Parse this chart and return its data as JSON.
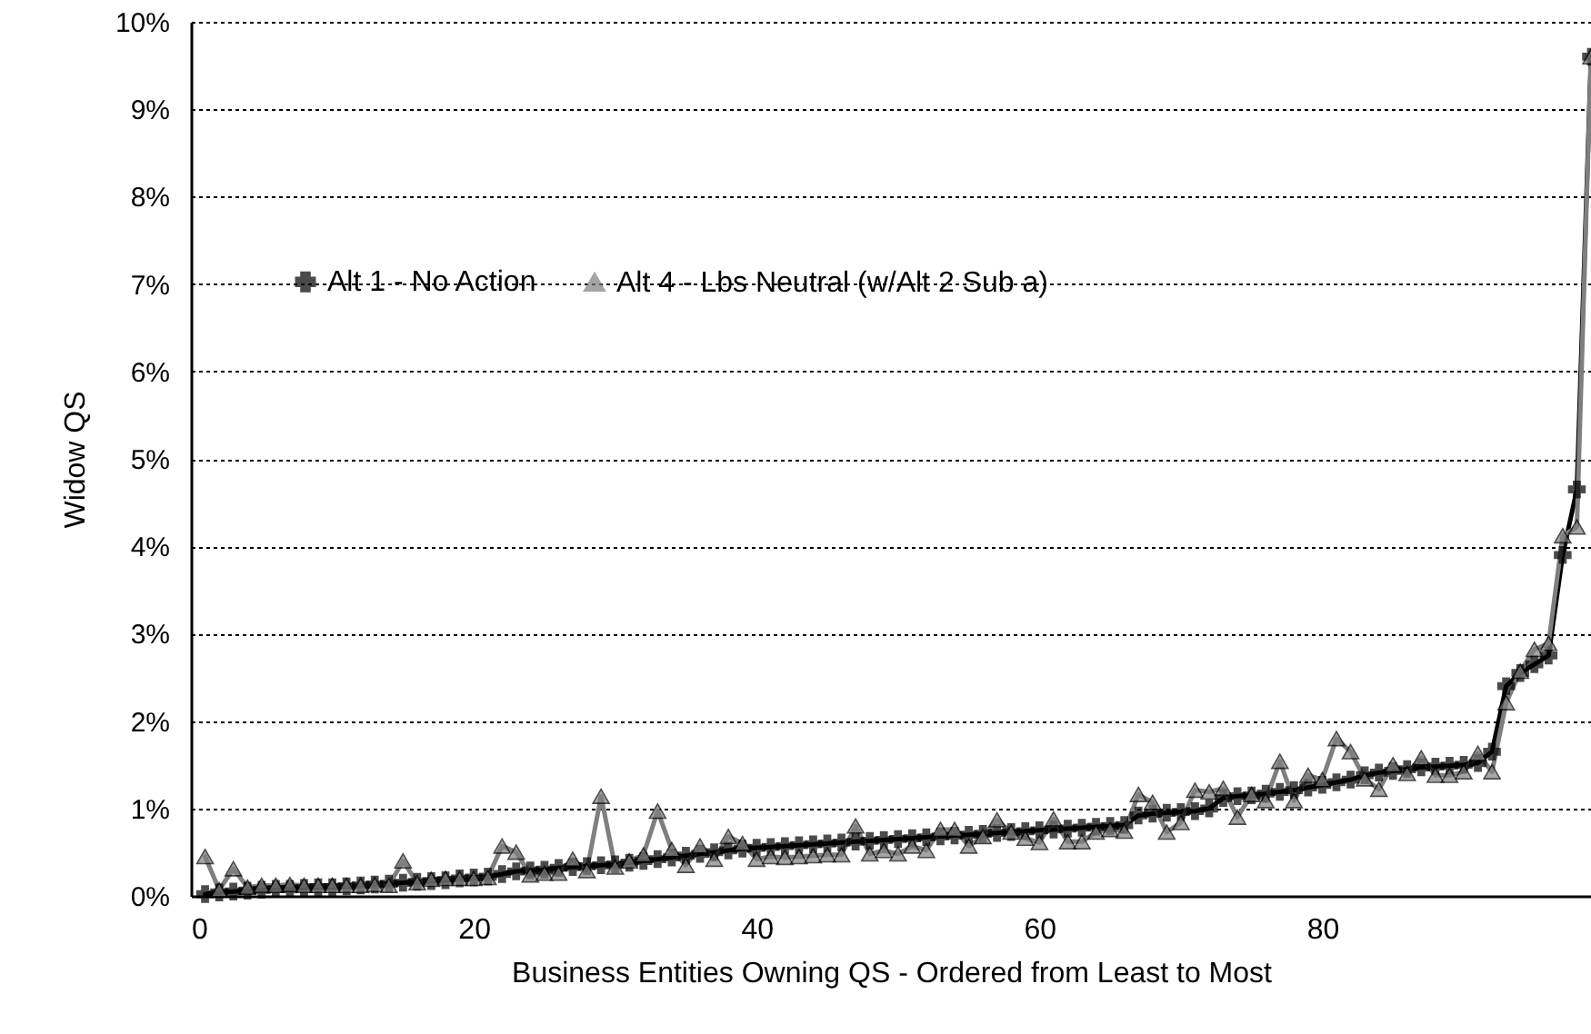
{
  "chart_data": {
    "type": "line",
    "xlabel": "Business Entities Owning QS - Ordered from Least to Most",
    "ylabel": "Widow QS",
    "x": [
      1,
      2,
      3,
      4,
      5,
      6,
      7,
      8,
      9,
      10,
      11,
      12,
      13,
      14,
      15,
      16,
      17,
      18,
      19,
      20,
      21,
      22,
      23,
      24,
      25,
      26,
      27,
      28,
      29,
      30,
      31,
      32,
      33,
      34,
      35,
      36,
      37,
      38,
      39,
      40,
      41,
      42,
      43,
      44,
      45,
      46,
      47,
      48,
      49,
      50,
      51,
      52,
      53,
      54,
      55,
      56,
      57,
      58,
      59,
      60,
      61,
      62,
      63,
      64,
      65,
      66,
      67,
      68,
      69,
      70,
      71,
      72,
      73,
      74,
      75,
      76,
      77,
      78,
      79,
      80,
      81,
      82,
      83,
      84,
      85,
      86,
      87,
      88,
      89,
      90,
      91,
      92,
      93,
      94,
      95,
      96,
      97,
      98,
      99
    ],
    "series": [
      {
        "name": "Alt 1 - No Action",
        "color": "#000000",
        "marker": "cross",
        "values": [
          0.02,
          0.04,
          0.05,
          0.06,
          0.07,
          0.08,
          0.08,
          0.09,
          0.1,
          0.1,
          0.11,
          0.12,
          0.13,
          0.14,
          0.15,
          0.16,
          0.17,
          0.18,
          0.2,
          0.21,
          0.22,
          0.25,
          0.28,
          0.29,
          0.3,
          0.32,
          0.33,
          0.34,
          0.35,
          0.36,
          0.38,
          0.4,
          0.42,
          0.44,
          0.46,
          0.48,
          0.5,
          0.52,
          0.54,
          0.55,
          0.56,
          0.57,
          0.58,
          0.59,
          0.6,
          0.61,
          0.62,
          0.63,
          0.64,
          0.65,
          0.66,
          0.67,
          0.68,
          0.69,
          0.7,
          0.71,
          0.72,
          0.73,
          0.74,
          0.75,
          0.76,
          0.77,
          0.78,
          0.79,
          0.8,
          0.81,
          0.92,
          0.94,
          0.95,
          0.96,
          0.97,
          1.0,
          1.12,
          1.14,
          1.15,
          1.17,
          1.19,
          1.21,
          1.24,
          1.27,
          1.3,
          1.33,
          1.38,
          1.41,
          1.43,
          1.45,
          1.47,
          1.48,
          1.49,
          1.5,
          1.52,
          1.65,
          2.4,
          2.55,
          2.65,
          2.75,
          3.9,
          4.65,
          9.6
        ]
      },
      {
        "name": "Alt 4 - Lbs Neutral (w/Alt 2 Sub a)",
        "color": "#7f7f7f",
        "marker": "triangle",
        "values": [
          0.45,
          0.07,
          0.31,
          0.1,
          0.12,
          0.12,
          0.13,
          0.12,
          0.12,
          0.12,
          0.12,
          0.12,
          0.13,
          0.12,
          0.4,
          0.15,
          0.19,
          0.2,
          0.2,
          0.2,
          0.21,
          0.57,
          0.5,
          0.24,
          0.26,
          0.26,
          0.42,
          0.29,
          1.14,
          0.33,
          0.4,
          0.47,
          0.97,
          0.53,
          0.35,
          0.57,
          0.42,
          0.68,
          0.6,
          0.42,
          0.45,
          0.44,
          0.45,
          0.46,
          0.47,
          0.47,
          0.8,
          0.48,
          0.52,
          0.48,
          0.57,
          0.52,
          0.76,
          0.76,
          0.57,
          0.68,
          0.87,
          0.73,
          0.66,
          0.61,
          0.88,
          0.62,
          0.62,
          0.73,
          0.76,
          0.74,
          1.16,
          1.07,
          0.73,
          0.84,
          1.21,
          1.19,
          1.23,
          0.9,
          1.16,
          1.09,
          1.54,
          1.09,
          1.38,
          1.33,
          1.8,
          1.65,
          1.34,
          1.22,
          1.5,
          1.4,
          1.58,
          1.38,
          1.38,
          1.42,
          1.63,
          1.42,
          2.21,
          2.57,
          2.82,
          2.89,
          4.12,
          4.22,
          9.6
        ]
      }
    ],
    "xlim": [
      0,
      99
    ],
    "xticks": [
      0,
      20,
      40,
      60,
      80
    ],
    "ylim": [
      0,
      10
    ],
    "yticks": [
      {
        "value": 0,
        "label": "0%"
      },
      {
        "value": 1,
        "label": "1%"
      },
      {
        "value": 2,
        "label": "2%"
      },
      {
        "value": 3,
        "label": "3%"
      },
      {
        "value": 4,
        "label": "4%"
      },
      {
        "value": 5,
        "label": "5%"
      },
      {
        "value": 6,
        "label": "6%"
      },
      {
        "value": 7,
        "label": "7%"
      },
      {
        "value": 8,
        "label": "8%"
      },
      {
        "value": 9,
        "label": "9%"
      },
      {
        "value": 10,
        "label": "10%"
      }
    ],
    "grid": "y",
    "legend": "top left",
    "line_style": "solid"
  }
}
